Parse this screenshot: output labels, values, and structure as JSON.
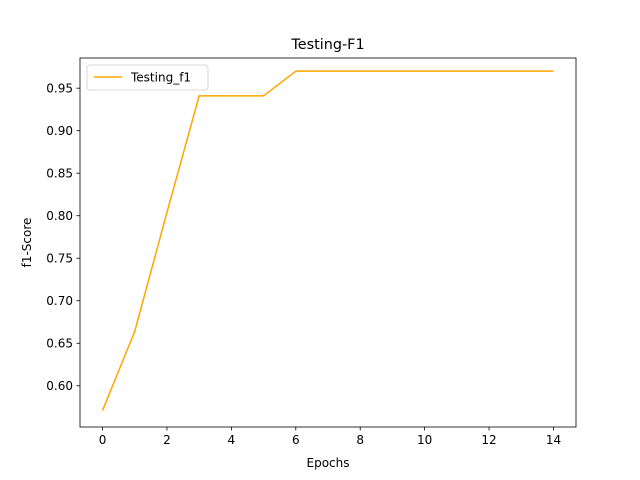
{
  "chart_data": {
    "type": "line",
    "title": "Testing-F1",
    "xlabel": "Epochs",
    "ylabel": "f1-Score",
    "xlim": [
      -0.7,
      14.7
    ],
    "ylim": [
      0.5515,
      0.9855
    ],
    "xticks": [
      0,
      2,
      4,
      6,
      8,
      10,
      12,
      14
    ],
    "xtick_labels": [
      "0",
      "2",
      "4",
      "6",
      "8",
      "10",
      "12",
      "14"
    ],
    "yticks": [
      0.6,
      0.65,
      0.7,
      0.75,
      0.8,
      0.85,
      0.9,
      0.95
    ],
    "ytick_labels": [
      "0.60",
      "0.65",
      "0.70",
      "0.75",
      "0.80",
      "0.85",
      "0.90",
      "0.95"
    ],
    "grid": false,
    "legend_position": "top-left",
    "series": [
      {
        "name": "Testing_f1",
        "color": "#ffa500",
        "x": [
          0,
          1,
          2,
          3,
          4,
          5,
          6,
          7,
          8,
          9,
          10,
          11,
          12,
          13,
          14
        ],
        "y": [
          0.571,
          0.664,
          0.804,
          0.941,
          0.941,
          0.941,
          0.97,
          0.97,
          0.97,
          0.97,
          0.97,
          0.97,
          0.97,
          0.97,
          0.97
        ]
      }
    ]
  }
}
